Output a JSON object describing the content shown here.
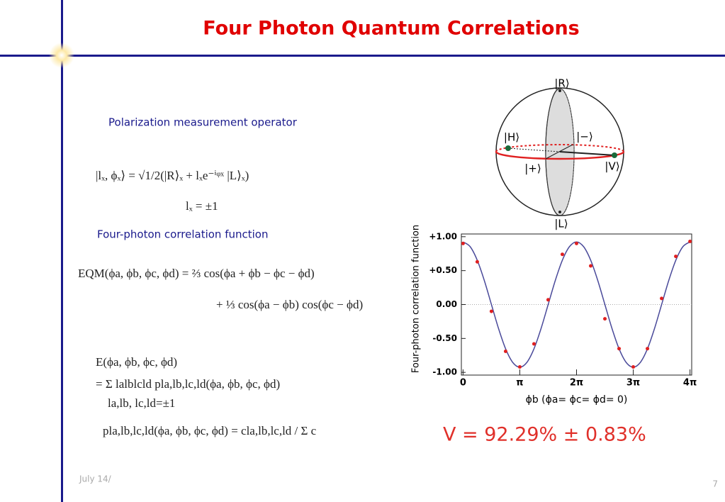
{
  "title": "Four Photon Quantum Correlations",
  "labels": {
    "operator": "Polarization measurement operator",
    "correlation": "Four-photon correlation function"
  },
  "equations": [
    "|lₓ, ϕₓ⟩  =  √1/2(|R⟩ₓ + lₓe⁻ⁱᵠˣ |L⟩ₓ)",
    "lₓ  =  ±1",
    "EQM(ϕa, ϕb, ϕc, ϕd)  =  ⅔ cos(ϕa + ϕb − ϕc − ϕd)",
    "+ ⅓ cos(ϕa − ϕb) cos(ϕc − ϕd)",
    "E(ϕa, ϕb, ϕc, ϕd)",
    "=   Σ    lalblcld pla,lb,lc,ld(ϕa, ϕb, ϕc, ϕd)",
    "la,lb, lc,ld=±1",
    "pla,lb,lc,ld(ϕa, ϕb, ϕc, ϕd) = cla,lb,lc,ld / Σ c"
  ],
  "bloch_labels": [
    "|R⟩",
    "|H⟩",
    "|−⟩",
    "|+⟩",
    "|V⟩",
    "|L⟩"
  ],
  "visibility": "V = 92.29% ±  0.83%",
  "footer": {
    "date": "July 14/",
    "page": "7"
  },
  "chart_data": {
    "type": "scatter",
    "xlabel": "ϕb   (ϕa= ϕc= ϕd= 0)",
    "ylabel": "Four-photon correlation function",
    "xlim": [
      -0.03,
      4.03
    ],
    "ylim": [
      -1.04,
      1.04
    ],
    "xticks": [
      0,
      {
        "value": 1,
        "label": "π"
      },
      {
        "value": 2,
        "label": "2π"
      },
      {
        "value": 3,
        "label": "3π"
      },
      {
        "value": 4,
        "label": "4π"
      }
    ],
    "yticks": [
      {
        "value": 1,
        "label": "+1.00"
      },
      {
        "value": 0.5,
        "label": "+0.50"
      },
      {
        "value": 0,
        "label": "0.00"
      },
      {
        "value": -0.5,
        "label": "-0.50"
      },
      {
        "value": -1,
        "label": "-1.00"
      }
    ],
    "series": [
      {
        "style": "markers",
        "color": "#e02020",
        "x": [
          0,
          0.25,
          0.5,
          0.75,
          1,
          1.25,
          1.5,
          1.75,
          2,
          2.25,
          2.5,
          2.75,
          3,
          3.25,
          3.5,
          3.75,
          4
        ],
        "values": [
          0.9,
          0.63,
          -0.1,
          -0.69,
          -0.92,
          -0.58,
          0.07,
          0.74,
          0.9,
          0.57,
          -0.21,
          -0.65,
          -0.92,
          -0.65,
          0.09,
          0.71,
          0.93
        ]
      },
      {
        "style": "line",
        "color": "#4a4a9a",
        "x": [
          0,
          0.125,
          0.25,
          0.375,
          0.5,
          0.625,
          0.75,
          0.875,
          1,
          1.125,
          1.25,
          1.375,
          1.5,
          1.625,
          1.75,
          1.875,
          2,
          2.125,
          2.25,
          2.375,
          2.5,
          2.625,
          2.75,
          2.875,
          3,
          3.125,
          3.25,
          3.375,
          3.5,
          3.625,
          3.75,
          3.875,
          4
        ],
        "values": [
          0.923,
          0.853,
          0.653,
          0.353,
          0,
          -0.353,
          -0.653,
          -0.853,
          -0.923,
          -0.853,
          -0.653,
          -0.353,
          0,
          0.353,
          0.653,
          0.853,
          0.923,
          0.853,
          0.653,
          0.353,
          0,
          -0.353,
          -0.653,
          -0.853,
          -0.923,
          -0.853,
          -0.653,
          -0.353,
          0,
          0.353,
          0.653,
          0.853,
          0.923
        ]
      }
    ]
  }
}
